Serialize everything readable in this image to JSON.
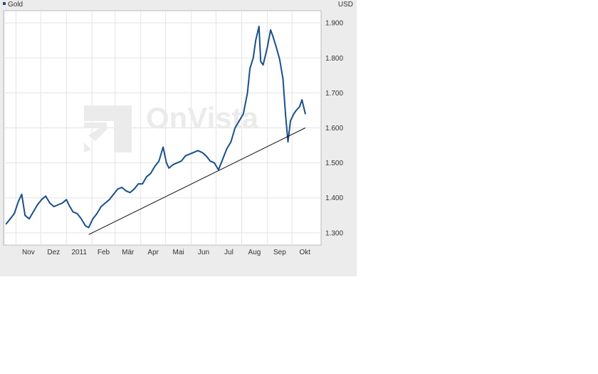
{
  "legend": {
    "label": "Gold",
    "color": "#1a4f8a"
  },
  "currency": "USD",
  "watermark": "OnVista",
  "chart_data": {
    "type": "line",
    "title": "",
    "xlabel": "",
    "ylabel": "",
    "ylim": [
      1265,
      1935
    ],
    "grid": true,
    "legend_position": "top-left",
    "x_tick_labels": [
      "Nov",
      "Dez",
      "2011",
      "Feb",
      "Mär",
      "Apr",
      "Mai",
      "Jun",
      "Jul",
      "Aug",
      "Sep",
      "Okt"
    ],
    "y_tick_labels": [
      "1.900",
      "1.800",
      "1.700",
      "1.600",
      "1.500",
      "1.400",
      "1.300"
    ],
    "y_ticks": [
      1900,
      1800,
      1700,
      1600,
      1500,
      1400,
      1300
    ],
    "series": [
      {
        "name": "Gold",
        "color": "#1a4f8a",
        "x": [
          "2010-10-20",
          "2010-10-25",
          "2010-10-30",
          "2010-11-04",
          "2010-11-08",
          "2010-11-12",
          "2010-11-17",
          "2010-11-22",
          "2010-11-27",
          "2010-12-02",
          "2010-12-07",
          "2010-12-12",
          "2010-12-17",
          "2010-12-22",
          "2010-12-27",
          "2011-01-01",
          "2011-01-04",
          "2011-01-09",
          "2011-01-14",
          "2011-01-19",
          "2011-01-24",
          "2011-01-28",
          "2011-02-02",
          "2011-02-07",
          "2011-02-12",
          "2011-02-17",
          "2011-02-22",
          "2011-02-27",
          "2011-03-04",
          "2011-03-09",
          "2011-03-14",
          "2011-03-19",
          "2011-03-24",
          "2011-03-29",
          "2011-04-03",
          "2011-04-08",
          "2011-04-13",
          "2011-04-18",
          "2011-04-23",
          "2011-04-28",
          "2011-05-02",
          "2011-05-05",
          "2011-05-10",
          "2011-05-15",
          "2011-05-20",
          "2011-05-25",
          "2011-05-30",
          "2011-06-04",
          "2011-06-09",
          "2011-06-14",
          "2011-06-19",
          "2011-06-24",
          "2011-06-29",
          "2011-07-04",
          "2011-07-09",
          "2011-07-14",
          "2011-07-19",
          "2011-07-24",
          "2011-07-29",
          "2011-08-03",
          "2011-08-08",
          "2011-08-11",
          "2011-08-15",
          "2011-08-18",
          "2011-08-22",
          "2011-08-24",
          "2011-08-27",
          "2011-09-01",
          "2011-09-05",
          "2011-09-08",
          "2011-09-12",
          "2011-09-16",
          "2011-09-20",
          "2011-09-23",
          "2011-09-26",
          "2011-09-29",
          "2011-10-03",
          "2011-10-06",
          "2011-10-10",
          "2011-10-13",
          "2011-10-17"
        ],
        "values": [
          1325,
          1340,
          1355,
          1390,
          1410,
          1350,
          1340,
          1360,
          1380,
          1395,
          1405,
          1385,
          1375,
          1380,
          1385,
          1395,
          1380,
          1360,
          1355,
          1340,
          1320,
          1315,
          1340,
          1355,
          1375,
          1385,
          1395,
          1410,
          1425,
          1430,
          1420,
          1415,
          1425,
          1440,
          1440,
          1460,
          1470,
          1490,
          1505,
          1545,
          1500,
          1485,
          1495,
          1500,
          1505,
          1520,
          1525,
          1530,
          1535,
          1530,
          1520,
          1505,
          1500,
          1480,
          1510,
          1540,
          1560,
          1600,
          1620,
          1640,
          1700,
          1770,
          1800,
          1850,
          1890,
          1790,
          1780,
          1830,
          1880,
          1860,
          1830,
          1795,
          1740,
          1640,
          1560,
          1620,
          1640,
          1650,
          1660,
          1680,
          1640
        ]
      }
    ],
    "annotations": [
      {
        "type": "trendline",
        "from": {
          "x": "2011-01-28",
          "y": 1295
        },
        "to": {
          "x": "2011-10-17",
          "y": 1600
        }
      }
    ]
  }
}
